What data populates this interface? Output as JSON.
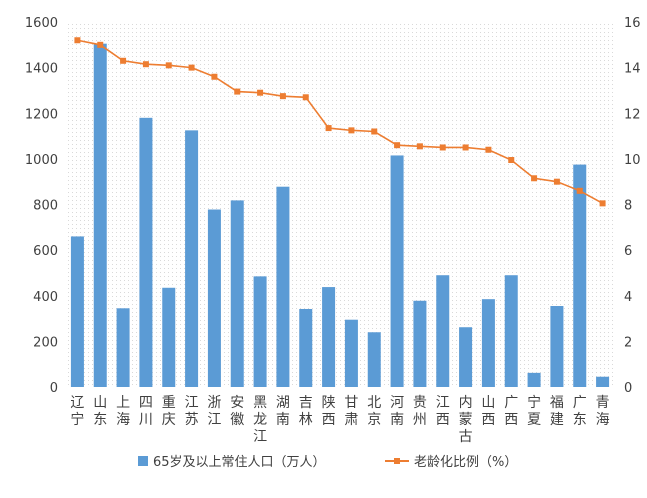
{
  "chart_data": {
    "type": "bar",
    "title": "",
    "categories": [
      "辽宁",
      "山东",
      "上海",
      "四川",
      "重庆",
      "江苏",
      "浙江",
      "安徽",
      "黑龙江",
      "湖南",
      "吉林",
      "陕西",
      "甘肃",
      "北京",
      "河南",
      "贵州",
      "江西",
      "内蒙古",
      "山西",
      "广西",
      "宁夏",
      "福建",
      "广东",
      "青海"
    ],
    "series": [
      {
        "name": "65岁及以上常住人口（万人）",
        "type": "bar",
        "axis": "left",
        "color": "#5b9bd5",
        "values": [
          660,
          1505,
          345,
          1180,
          435,
          1125,
          778,
          818,
          485,
          878,
          342,
          438,
          295,
          240,
          1015,
          378,
          490,
          262,
          385,
          490,
          62,
          355,
          975,
          45
        ]
      },
      {
        "name": "老龄化比例（%）",
        "type": "line",
        "axis": "right",
        "color": "#ed7d31",
        "values": [
          15.2,
          15.0,
          14.3,
          14.15,
          14.1,
          14.0,
          13.6,
          12.95,
          12.9,
          12.75,
          12.7,
          11.35,
          11.25,
          11.2,
          10.6,
          10.55,
          10.5,
          10.5,
          10.4,
          9.95,
          9.15,
          9.0,
          8.6,
          8.05
        ]
      }
    ],
    "y_left": {
      "min": 0,
      "max": 1600,
      "ticks": [
        "0",
        "200",
        "400",
        "600",
        "800",
        "1000",
        "1200",
        "1400",
        "1600"
      ]
    },
    "y_right": {
      "min": 0,
      "max": 16,
      "ticks": [
        "0",
        "2",
        "4",
        "6",
        "8",
        "10",
        "12",
        "14",
        "16"
      ]
    },
    "grid": false,
    "plot_background": "dotted",
    "legend_position": "bottom"
  }
}
